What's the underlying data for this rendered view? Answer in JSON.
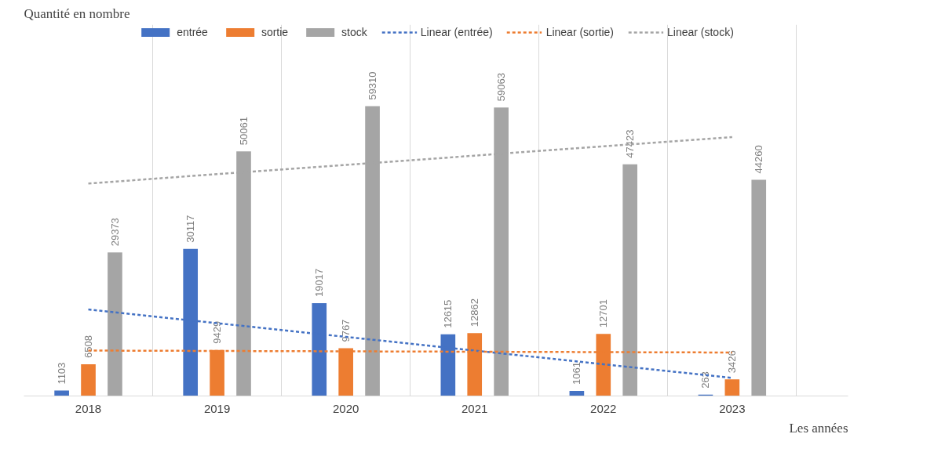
{
  "chart_data": {
    "type": "bar",
    "ylabel": "Quantité en nombre",
    "xlabel": "Les années",
    "categories": [
      "2018",
      "2019",
      "2020",
      "2021",
      "2022",
      "2023"
    ],
    "series": [
      {
        "name": "entrée",
        "color": "#4472c4",
        "values": [
          1103,
          30117,
          19017,
          12615,
          1061,
          263
        ],
        "value_labels": [
          "1103",
          "30117",
          "19017",
          "12615",
          "1061",
          "263"
        ]
      },
      {
        "name": "sortie",
        "color": "#ed7d31",
        "values": [
          6508,
          9429,
          9767,
          12862,
          12701,
          3426
        ],
        "value_labels": [
          "6508",
          "9429",
          "9767",
          "12862",
          "12701",
          "3426"
        ]
      },
      {
        "name": "stock",
        "color": "#a5a5a5",
        "values": [
          29373,
          50061,
          59310,
          59063,
          47423,
          44260
        ],
        "value_labels": [
          "29373",
          "50061",
          "59310",
          "59063",
          "47423",
          "44260"
        ]
      },
      {
        "name": "Linear (entrée)",
        "type": "line",
        "line_style": "dashed",
        "color": "#4472c4",
        "values": [
          17700,
          14900,
          12100,
          9300,
          6500,
          3700
        ]
      },
      {
        "name": "Linear (sortie)",
        "type": "line",
        "line_style": "dashed",
        "color": "#ed7d31",
        "values": [
          9300,
          9220,
          9140,
          9060,
          8980,
          8900
        ]
      },
      {
        "name": "Linear (stock)",
        "type": "line",
        "line_style": "dashed",
        "color": "#a5a5a5",
        "values": [
          43500,
          45400,
          47300,
          49200,
          51100,
          53000
        ]
      }
    ],
    "ylim": [
      0,
      76000
    ],
    "grid": "x",
    "legend": "top",
    "tick_labels": "x"
  }
}
